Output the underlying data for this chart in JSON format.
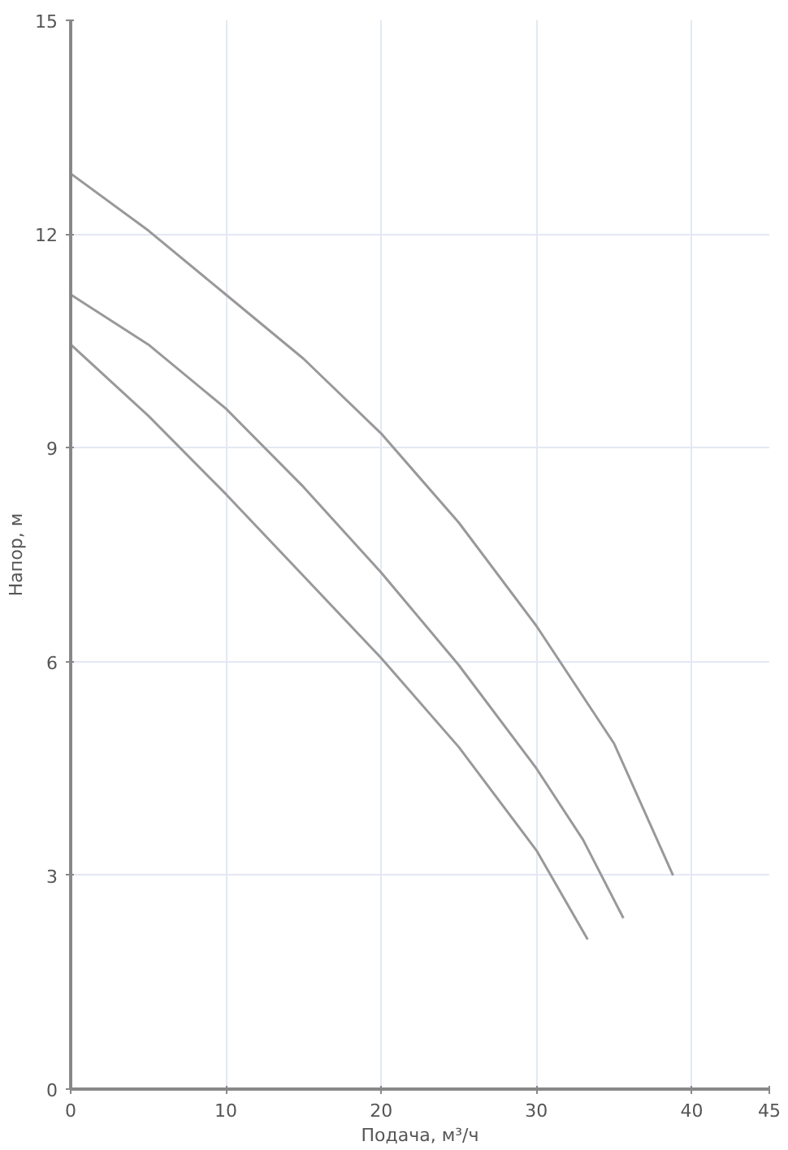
{
  "chart_data": {
    "type": "line",
    "xlabel": "Подача, м³/ч",
    "ylabel": "Напор, м",
    "xlim": [
      0,
      45
    ],
    "ylim": [
      0,
      15
    ],
    "xticks": [
      0,
      10,
      20,
      30,
      40,
      45
    ],
    "yticks": [
      0,
      3,
      6,
      9,
      12,
      15
    ],
    "grid": true,
    "marker": "none",
    "line_style": "solid",
    "series": [
      {
        "color": "#999999",
        "x": [
          0,
          5,
          10,
          15,
          20,
          25,
          30,
          35,
          38.8
        ],
        "values": [
          12.85,
          12.05,
          11.15,
          10.25,
          9.2,
          7.95,
          6.5,
          4.85,
          3.0
        ]
      },
      {
        "color": "#999999",
        "x": [
          0,
          5,
          10,
          15,
          20,
          25,
          30,
          33,
          35.6
        ],
        "values": [
          11.15,
          10.45,
          9.55,
          8.45,
          7.25,
          5.95,
          4.5,
          3.5,
          2.4
        ]
      },
      {
        "color": "#999999",
        "x": [
          0,
          5,
          10,
          15,
          20,
          25,
          30,
          33.3
        ],
        "values": [
          10.45,
          9.45,
          8.35,
          7.2,
          6.05,
          4.8,
          3.35,
          2.1
        ]
      }
    ]
  }
}
